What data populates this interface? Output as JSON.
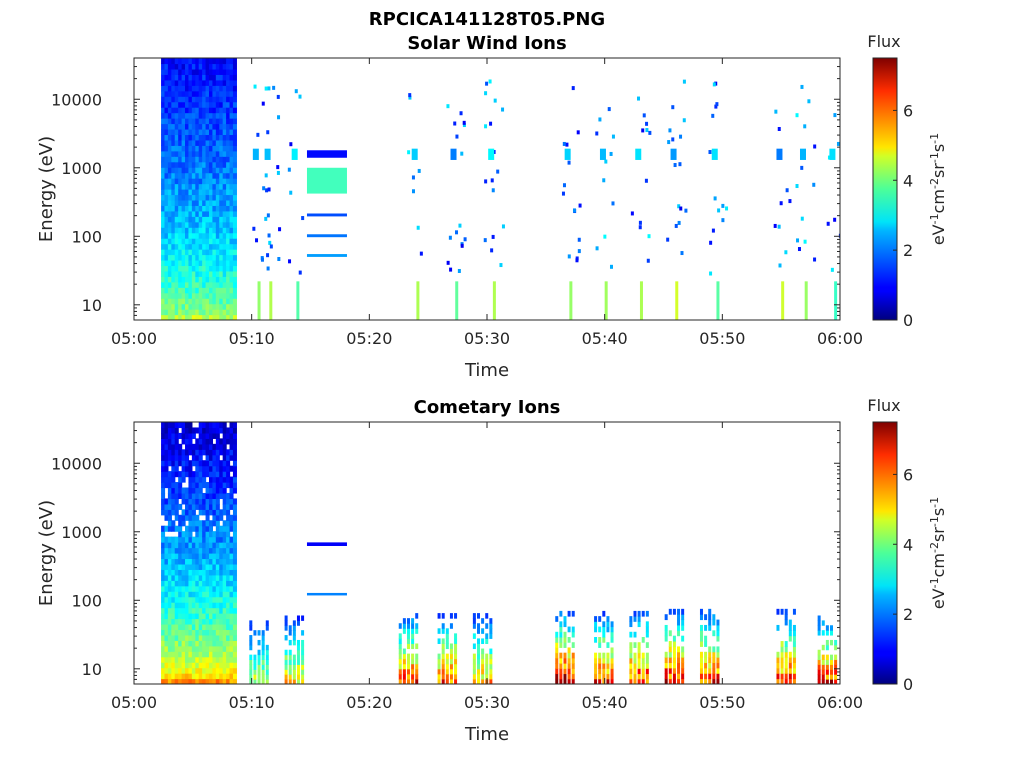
{
  "figure": {
    "title": "RPCICA141128T05.PNG"
  },
  "chart_data": [
    {
      "type": "heatmap",
      "title": "Solar Wind Ions",
      "xlabel": "Time",
      "ylabel": "Energy (eV)",
      "x_ticks": [
        "05:00",
        "05:10",
        "05:20",
        "05:30",
        "05:40",
        "05:50",
        "06:00"
      ],
      "x_range_minutes": [
        0,
        60
      ],
      "y_scale": "log",
      "y_ticks": [
        {
          "value": 10,
          "label": "10"
        },
        {
          "value": 100,
          "label": "100"
        },
        {
          "value": 1000,
          "label": "1000"
        },
        {
          "value": 10000,
          "label": "10000"
        }
      ],
      "y_range": [
        6,
        40000
      ],
      "colorbar": {
        "title": "Flux",
        "ticks": [
          "0",
          "2",
          "4",
          "6"
        ],
        "range": [
          0,
          7.5
        ],
        "colormap": "jet"
      },
      "blocks": [
        {
          "t_start": 2.3,
          "t_end": 8.7,
          "e_min": 6,
          "e_max": 40000,
          "flux_low_energy": 4.2,
          "flux_high_energy": 1.0
        },
        {
          "t_start": 14.7,
          "t_end": 18.1,
          "e_min": 1400,
          "e_max": 1800,
          "flux": 1.0
        },
        {
          "t_start": 14.7,
          "t_end": 18.1,
          "e_min": 420,
          "e_max": 1000,
          "flux": 3.3
        },
        {
          "t_start": 14.7,
          "t_end": 18.1,
          "e_min": 195,
          "e_max": 215,
          "flux": 1.5
        },
        {
          "t_start": 14.7,
          "t_end": 18.1,
          "e_min": 97,
          "e_max": 107,
          "flux": 1.8
        },
        {
          "t_start": 14.7,
          "t_end": 18.1,
          "e_min": 50,
          "e_max": 55,
          "flux": 2.1
        }
      ],
      "sparse_minutes": [
        10.5,
        11.5,
        13.8,
        24.0,
        27.3,
        30.5,
        37.0,
        40.0,
        43.0,
        46.0,
        49.5,
        55.0,
        57.0,
        59.5
      ]
    },
    {
      "type": "heatmap",
      "title": "Cometary Ions",
      "xlabel": "Time",
      "ylabel": "Energy (eV)",
      "x_ticks": [
        "05:00",
        "05:10",
        "05:20",
        "05:30",
        "05:40",
        "05:50",
        "06:00"
      ],
      "x_range_minutes": [
        0,
        60
      ],
      "y_scale": "log",
      "y_ticks": [
        {
          "value": 10,
          "label": "10"
        },
        {
          "value": 100,
          "label": "100"
        },
        {
          "value": 1000,
          "label": "1000"
        },
        {
          "value": 10000,
          "label": "10000"
        }
      ],
      "y_range": [
        6,
        40000
      ],
      "colorbar": {
        "title": "Flux",
        "ticks": [
          "0",
          "2",
          "4",
          "6"
        ],
        "range": [
          0,
          7.5
        ],
        "colormap": "jet"
      },
      "blocks": [
        {
          "t_start": 2.3,
          "t_end": 8.7,
          "e_min": 6,
          "e_max": 40000,
          "flux_low_energy": 5.5,
          "flux_high_energy": 0.6
        },
        {
          "t_start": 14.7,
          "t_end": 18.1,
          "e_min": 620,
          "e_max": 700,
          "flux": 0.9
        },
        {
          "t_start": 14.7,
          "t_end": 18.1,
          "e_min": 120,
          "e_max": 128,
          "flux": 1.9
        }
      ],
      "bursts": [
        {
          "t": 10.5,
          "e_top": 60,
          "flux_peak": 4.5
        },
        {
          "t": 13.5,
          "e_top": 60,
          "flux_peak": 5.3
        },
        {
          "t": 23.2,
          "e_top": 65,
          "flux_peak": 6.6
        },
        {
          "t": 26.5,
          "e_top": 65,
          "flux_peak": 6.4
        },
        {
          "t": 29.5,
          "e_top": 65,
          "flux_peak": 5.6
        },
        {
          "t": 36.5,
          "e_top": 70,
          "flux_peak": 7.4
        },
        {
          "t": 39.8,
          "e_top": 70,
          "flux_peak": 6.6
        },
        {
          "t": 42.8,
          "e_top": 70,
          "flux_peak": 6.8
        },
        {
          "t": 45.8,
          "e_top": 75,
          "flux_peak": 7.0
        },
        {
          "t": 48.8,
          "e_top": 75,
          "flux_peak": 6.8
        },
        {
          "t": 55.3,
          "e_top": 75,
          "flux_peak": 6.6
        },
        {
          "t": 58.8,
          "e_top": 60,
          "flux_peak": 6.9
        }
      ]
    }
  ]
}
